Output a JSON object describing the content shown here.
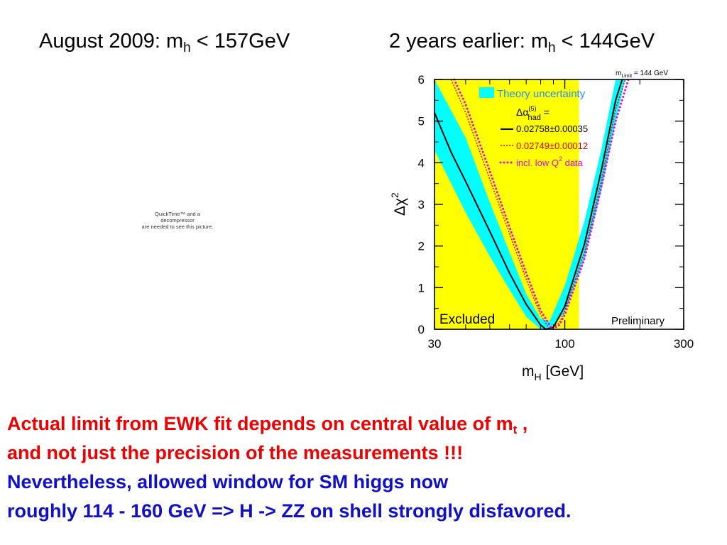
{
  "slide": {
    "heading_left": {
      "text": "August 2009: m",
      "sub": "h",
      "tail": " < 157GeV"
    },
    "heading_right": {
      "text": "2 years earlier: m",
      "sub": "h",
      "tail": " < 144GeV"
    },
    "placeholder": [
      "QuickTime™ and a",
      "decompressor",
      "are needed to see this picture."
    ],
    "lines": [
      {
        "text": "Actual limit from EWK fit depends on central value of m",
        "sub": "t",
        "tail": " ,",
        "color": "#ee0000"
      },
      {
        "text": "and not just the precision of the measurements !!!",
        "color": "#ee0000"
      },
      {
        "text": "Nevertheless, allowed window for SM higgs now",
        "color": "#1010c8"
      },
      {
        "text": "roughly 114 - 160 GeV => H -> ZZ on shell strongly disfavored.",
        "color": "#1010c8"
      }
    ]
  },
  "chart_data": {
    "type": "line",
    "xscale": "log",
    "xlim": [
      30,
      300
    ],
    "ylim": [
      0,
      6
    ],
    "xticks": [
      "30",
      "100",
      "300"
    ],
    "yticks": [
      "0",
      "1",
      "2",
      "3",
      "4",
      "5",
      "6"
    ],
    "xlabel": {
      "main": "m",
      "sub": "H",
      "tail": " [GeV]"
    },
    "ylabel": {
      "main": "Δχ",
      "sup": "2"
    },
    "excluded_region": {
      "x": [
        30,
        114
      ],
      "color": "#ffff00",
      "label": "Excluded"
    },
    "limit_label": {
      "main": "m",
      "sub": "Limit",
      "tail": " = 144 GeV"
    },
    "preliminary_label": "Preliminary",
    "legend": {
      "theory": "Theory uncertainty",
      "alpha": {
        "main": "Δα",
        "sup": "(5)",
        "sub": "had",
        "tail": " ="
      },
      "entries": [
        {
          "label": "0.02758±0.00035",
          "color": "#000000",
          "style": "solid"
        },
        {
          "label": "0.02749±0.00012",
          "color": "#dd0000",
          "style": "dotted"
        },
        {
          "label": "incl. low Q",
          "sup": "2",
          "tail": " data",
          "color": "#ee00ee",
          "style": "dots"
        }
      ]
    },
    "theory_band": {
      "color": "#00ffff",
      "x": [
        30,
        40,
        50,
        60,
        70,
        80,
        87,
        100,
        120,
        140,
        160,
        175
      ],
      "y_low": [
        4.3,
        2.8,
        1.75,
        0.95,
        0.3,
        0,
        0,
        0.4,
        1.7,
        3.3,
        5.0,
        6.0
      ],
      "y_high": [
        6.0,
        4.6,
        3.05,
        1.85,
        0.85,
        0.25,
        0.2,
        1.05,
        2.6,
        4.3,
        6.0,
        6.2
      ]
    },
    "series": [
      {
        "color": "#000000",
        "style": "solid",
        "x": [
          30,
          35,
          40,
          50,
          60,
          70,
          80,
          84,
          90,
          100,
          120,
          140,
          160,
          170
        ],
        "y": [
          5.2,
          4.25,
          3.55,
          2.35,
          1.35,
          0.6,
          0.1,
          0,
          0.05,
          0.55,
          2.05,
          3.8,
          5.5,
          6.2
        ]
      },
      {
        "color": "#dd0000",
        "style": "dotted",
        "x": [
          35,
          40,
          50,
          60,
          70,
          80,
          87,
          95,
          100,
          120,
          140,
          160,
          175
        ],
        "y": [
          6.0,
          5.2,
          3.6,
          2.3,
          1.2,
          0.35,
          0,
          0.15,
          0.45,
          1.85,
          3.55,
          5.3,
          6.3
        ]
      },
      {
        "color": "#ee00ee",
        "style": "dots",
        "x": [
          36,
          40,
          50,
          60,
          70,
          80,
          89,
          95,
          100,
          120,
          140,
          160,
          180
        ],
        "y": [
          6.0,
          5.4,
          3.8,
          2.45,
          1.35,
          0.45,
          0,
          0.1,
          0.35,
          1.7,
          3.4,
          5.0,
          6.3
        ]
      }
    ]
  }
}
